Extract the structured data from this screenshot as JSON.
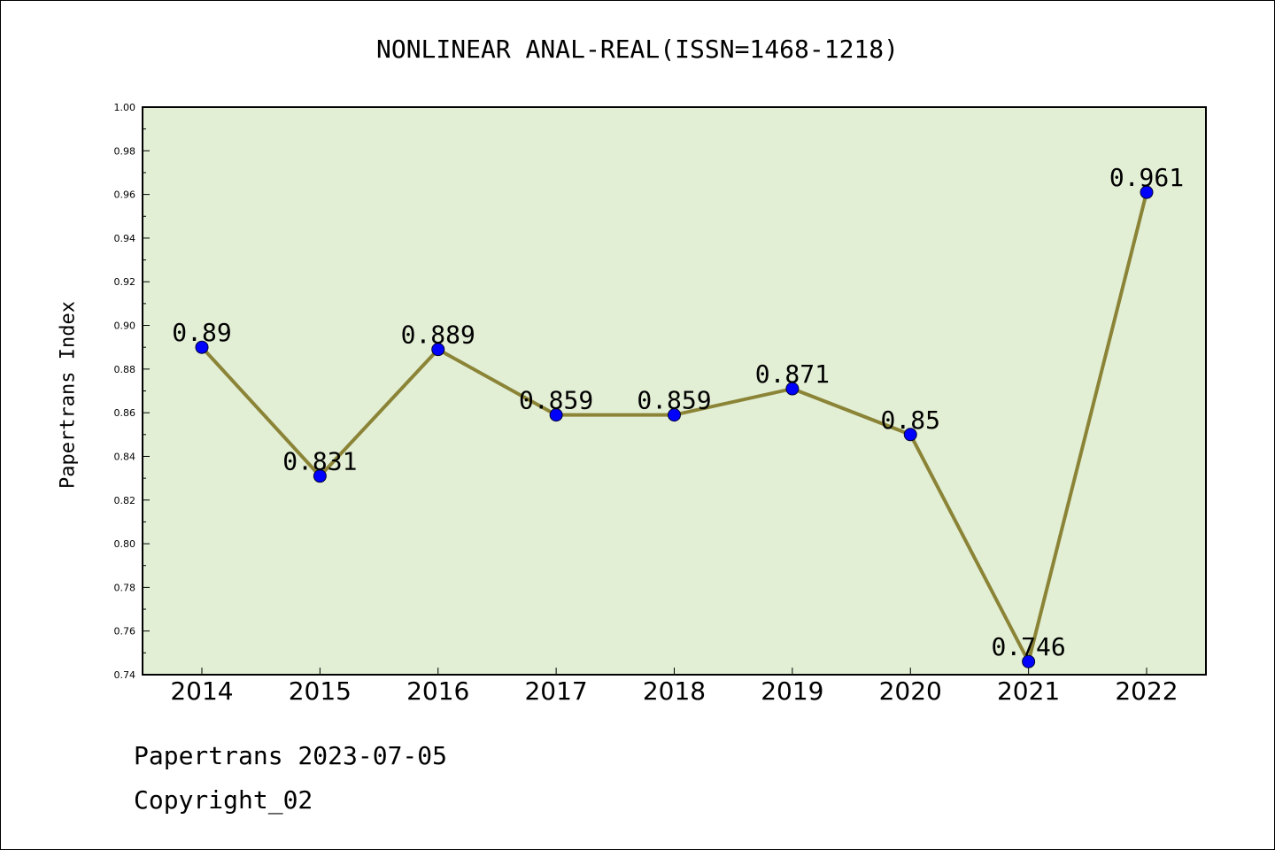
{
  "title": "NONLINEAR ANAL-REAL(ISSN=1468-1218)",
  "footer": {
    "date_line": "Papertrans 2023-07-05",
    "copyright": "Copyright_02"
  },
  "chart_data": {
    "type": "line",
    "title": "NONLINEAR ANAL-REAL(ISSN=1468-1218)",
    "xlabel": "",
    "ylabel": "Papertrans Index",
    "categories": [
      "2014",
      "2015",
      "2016",
      "2017",
      "2018",
      "2019",
      "2020",
      "2021",
      "2022"
    ],
    "series": [
      {
        "values": [
          0.89,
          0.831,
          0.889,
          0.859,
          0.859,
          0.871,
          0.85,
          0.746,
          0.961
        ],
        "labels": [
          "0.89",
          "0.831",
          "0.889",
          "0.859",
          "0.859",
          "0.871",
          "0.85",
          "0.746",
          "0.961"
        ]
      }
    ],
    "ylim": [
      0.74,
      1.0
    ],
    "yticks": [
      "0.74",
      "0.76",
      "0.78",
      "0.80",
      "0.82",
      "0.84",
      "0.86",
      "0.88",
      "0.90",
      "0.92",
      "0.94",
      "0.96",
      "0.98",
      "1.00"
    ],
    "grid": false,
    "colors": {
      "plot_background": "#e2efd5",
      "line": "#8b8437",
      "marker": "#0000ff"
    }
  }
}
